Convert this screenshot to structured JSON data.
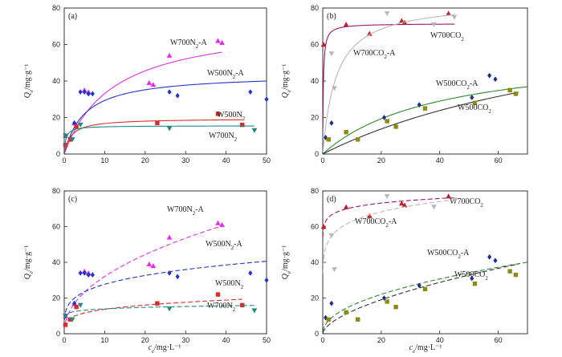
{
  "colors": {
    "W700N2-A": "#e62ee6",
    "W500N2-A": "#2233cc",
    "W500N2": "#dd2b2b",
    "W700N2": "#1f8a80",
    "W700CO2": "#a0136f",
    "W700CO2-A": "#b8b8b8",
    "W500CO2-A": "#2a8a2a",
    "W500CO2": "#333333",
    "marker_W700CO2": "#c0202a",
    "marker_W500CO2-A": "#1c2f8f",
    "marker_W500CO2": "#8c8c14"
  },
  "chart_data": [
    {
      "type": "scatter",
      "panel_label": "(a)",
      "xlabel": "",
      "ylabel": "Qe/mg·g⁻¹",
      "xlim": [
        0,
        50
      ],
      "ylim": [
        0,
        80
      ],
      "xticks": [
        0,
        10,
        20,
        30,
        40,
        50
      ],
      "yticks": [
        0,
        20,
        40,
        60,
        80
      ],
      "fit_style": "solid",
      "series": [
        {
          "name": "W700N2-A",
          "marker": "triangle",
          "color_key": "W700N2-A",
          "points": [
            [
              0.3,
              10
            ],
            [
              2.5,
              17
            ],
            [
              5,
              35
            ],
            [
              6,
              34
            ],
            [
              21,
              39
            ],
            [
              22,
              38
            ],
            [
              26,
              54
            ],
            [
              38,
              62
            ],
            [
              39,
              61
            ]
          ],
          "fit": {
            "model": "langmuir",
            "qmax": 73,
            "k": 0.083,
            "x_end": 39
          }
        },
        {
          "name": "W500N2-A",
          "marker": "diamond",
          "color_key": "W500N2-A",
          "points": [
            [
              0.3,
              10
            ],
            [
              2.5,
              17
            ],
            [
              4,
              34
            ],
            [
              5,
              34
            ],
            [
              6,
              33
            ],
            [
              7,
              33
            ],
            [
              26,
              34
            ],
            [
              28,
              32
            ],
            [
              46,
              34
            ],
            [
              50,
              30
            ]
          ],
          "fit": {
            "model": "langmuir",
            "qmax": 44,
            "k": 0.2,
            "x_end": 50
          }
        },
        {
          "name": "W500N2",
          "marker": "square",
          "color_key": "W500N2",
          "points": [
            [
              0.3,
              5
            ],
            [
              1.5,
              8
            ],
            [
              3,
              15
            ],
            [
              23,
              17
            ],
            [
              38,
              22
            ],
            [
              44,
              16
            ]
          ],
          "fit": {
            "model": "langmuir",
            "qmax": 19.5,
            "k": 0.6,
            "x_end": 44
          }
        },
        {
          "name": "W700N2",
          "marker": "triangle-down",
          "color_key": "W700N2",
          "points": [
            [
              0.3,
              10
            ],
            [
              2,
              8
            ],
            [
              4,
              16
            ],
            [
              26,
              14
            ],
            [
              47,
              13
            ]
          ],
          "fit": {
            "model": "langmuir",
            "qmax": 15.5,
            "k": 2.5,
            "x_end": 47
          }
        }
      ]
    },
    {
      "type": "scatter",
      "panel_label": "(b)",
      "xlabel": "",
      "ylabel": "Qe/mg·g⁻¹",
      "xlim": [
        0,
        70
      ],
      "ylim": [
        0,
        80
      ],
      "xticks": [
        0,
        20,
        40,
        60
      ],
      "yticks": [
        0,
        20,
        40,
        60,
        80
      ],
      "fit_style": "solid",
      "series": [
        {
          "name": "W700CO2",
          "marker": "triangle",
          "color_key": "marker_W700CO2",
          "fit_color_key": "W700CO2",
          "points": [
            [
              0.3,
              60
            ],
            [
              8,
              71
            ],
            [
              16,
              66
            ],
            [
              27,
              73
            ],
            [
              28,
              72
            ],
            [
              43,
              77
            ]
          ],
          "fit": {
            "model": "langmuir",
            "qmax": 71.5,
            "k": 5,
            "x_end": 45
          }
        },
        {
          "name": "W700CO2-A",
          "marker": "triangle-down",
          "color_key": "W700CO2-A",
          "points": [
            [
              3,
              55
            ],
            [
              4,
              36
            ],
            [
              22,
              77
            ],
            [
              38,
              71
            ],
            [
              45,
              75
            ]
          ],
          "fit": {
            "model": "langmuir",
            "qmax": 84,
            "k": 0.22,
            "x_end": 45
          }
        },
        {
          "name": "W500CO2-A",
          "marker": "diamond",
          "color_key": "marker_W500CO2-A",
          "fit_color_key": "W500CO2-A",
          "points": [
            [
              1,
              9
            ],
            [
              3,
              17
            ],
            [
              21,
              20
            ],
            [
              33,
              27
            ],
            [
              51,
              31
            ],
            [
              57,
              43
            ],
            [
              59,
              41
            ]
          ],
          "fit": {
            "model": "langmuir",
            "qmax": 58,
            "k": 0.025,
            "x_end": 70
          }
        },
        {
          "name": "W500CO2",
          "marker": "square",
          "color_key": "marker_W500CO2",
          "fit_color_key": "W500CO2",
          "points": [
            [
              2,
              8
            ],
            [
              8,
              12
            ],
            [
              12,
              8
            ],
            [
              22,
              18
            ],
            [
              25,
              15
            ],
            [
              35,
              25
            ],
            [
              52,
              28
            ],
            [
              64,
              35
            ],
            [
              66,
              33
            ]
          ],
          "fit": {
            "model": "langmuir",
            "qmax": 90,
            "k": 0.009,
            "x_end": 67
          }
        }
      ]
    },
    {
      "type": "scatter",
      "panel_label": "(c)",
      "xlabel": "ce/mg·L⁻¹",
      "ylabel": "Qe/mg·g⁻¹",
      "xlim": [
        0,
        50
      ],
      "ylim": [
        0,
        80
      ],
      "xticks": [
        0,
        10,
        20,
        30,
        40,
        50
      ],
      "yticks": [
        0,
        20,
        40,
        60,
        80
      ],
      "fit_style": "dashed",
      "series": [
        {
          "name": "W700N2-A",
          "marker": "triangle",
          "color_key": "W700N2-A",
          "points": [
            [
              0.3,
              10
            ],
            [
              2.5,
              17
            ],
            [
              5,
              35
            ],
            [
              6,
              34
            ],
            [
              21,
              39
            ],
            [
              22,
              38
            ],
            [
              26,
              54
            ],
            [
              38,
              62
            ],
            [
              39,
              61
            ]
          ],
          "fit": {
            "model": "freundlich",
            "kf": 11,
            "n": 2.15,
            "x_end": 39
          }
        },
        {
          "name": "W500N2-A",
          "marker": "diamond",
          "color_key": "W500N2-A",
          "points": [
            [
              0.3,
              10
            ],
            [
              2.5,
              17
            ],
            [
              4,
              34
            ],
            [
              5,
              34
            ],
            [
              6,
              33
            ],
            [
              7,
              33
            ],
            [
              26,
              34
            ],
            [
              28,
              32
            ],
            [
              46,
              34
            ],
            [
              50,
              30
            ]
          ],
          "fit": {
            "model": "freundlich",
            "kf": 16,
            "n": 4.2,
            "x_end": 50
          }
        },
        {
          "name": "W500N2",
          "marker": "square",
          "color_key": "W500N2",
          "points": [
            [
              0.3,
              5
            ],
            [
              1.5,
              8
            ],
            [
              3,
              15
            ],
            [
              23,
              17
            ],
            [
              38,
              22
            ],
            [
              44,
              16
            ]
          ],
          "fit": {
            "model": "freundlich",
            "kf": 8,
            "n": 4.3,
            "x_end": 44
          }
        },
        {
          "name": "W700N2",
          "marker": "triangle-down",
          "color_key": "W700N2",
          "points": [
            [
              0.3,
              10
            ],
            [
              2,
              8
            ],
            [
              4,
              16
            ],
            [
              26,
              14
            ],
            [
              47,
              13
            ]
          ],
          "fit": {
            "model": "freundlich",
            "kf": 11.5,
            "n": 12,
            "x_end": 47
          }
        }
      ]
    },
    {
      "type": "scatter",
      "panel_label": "(d)",
      "xlabel": "ce/mg·L⁻¹",
      "ylabel": "Qe/mg·g⁻¹",
      "xlim": [
        0,
        70
      ],
      "ylim": [
        0,
        80
      ],
      "xticks": [
        0,
        20,
        40,
        60
      ],
      "yticks": [
        0,
        20,
        40,
        60,
        80
      ],
      "fit_style": "dashed",
      "series": [
        {
          "name": "W700CO2",
          "marker": "triangle",
          "color_key": "marker_W700CO2",
          "fit_color_key": "W700CO2",
          "points": [
            [
              0.3,
              60
            ],
            [
              8,
              71
            ],
            [
              16,
              66
            ],
            [
              27,
              73
            ],
            [
              28,
              72
            ],
            [
              43,
              77
            ]
          ],
          "fit": {
            "model": "freundlich",
            "kf": 63,
            "n": 20,
            "x_end": 45
          }
        },
        {
          "name": "W700CO2-A",
          "marker": "triangle-down",
          "color_key": "W700CO2-A",
          "points": [
            [
              3,
              55
            ],
            [
              4,
              36
            ],
            [
              22,
              77
            ],
            [
              38,
              71
            ],
            [
              45,
              75
            ]
          ],
          "fit": {
            "model": "freundlich",
            "kf": 48,
            "n": 8.5,
            "x_end": 45
          }
        },
        {
          "name": "W500CO2-A",
          "marker": "diamond",
          "color_key": "marker_W500CO2-A",
          "fit_color_key": "W500CO2-A",
          "points": [
            [
              1,
              9
            ],
            [
              3,
              17
            ],
            [
              21,
              20
            ],
            [
              33,
              27
            ],
            [
              51,
              31
            ],
            [
              57,
              43
            ],
            [
              59,
              41
            ]
          ],
          "fit": {
            "model": "freundlich",
            "kf": 5.3,
            "n": 2.1,
            "x_end": 70
          }
        },
        {
          "name": "W500CO2",
          "marker": "square",
          "color_key": "marker_W500CO2",
          "fit_color_key": "W500CO2",
          "points": [
            [
              2,
              8
            ],
            [
              8,
              12
            ],
            [
              12,
              8
            ],
            [
              22,
              18
            ],
            [
              25,
              15
            ],
            [
              35,
              25
            ],
            [
              52,
              28
            ],
            [
              64,
              35
            ],
            [
              66,
              33
            ]
          ],
          "fit": {
            "model": "freundlich",
            "kf": 3.2,
            "n": 1.68,
            "x_end": 67
          }
        }
      ]
    }
  ]
}
